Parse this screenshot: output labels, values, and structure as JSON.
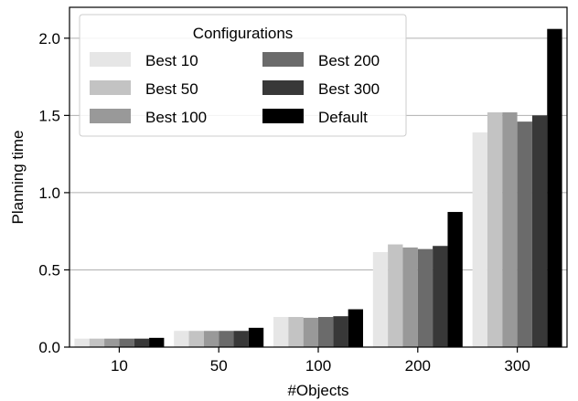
{
  "chart_data": {
    "type": "bar",
    "title": "",
    "xlabel": "#Objects",
    "ylabel": "Planning time",
    "ylim": [
      0,
      2.2
    ],
    "yticks": [
      "0.0",
      "0.5",
      "1.0",
      "1.5",
      "2.0"
    ],
    "ytick_values": [
      0,
      0.5,
      1.0,
      1.5,
      2.0
    ],
    "grid": "horizontal",
    "categories": [
      "10",
      "50",
      "100",
      "200",
      "300"
    ],
    "legend": {
      "title": "Configurations",
      "placement": "top-left",
      "columns": 2
    },
    "series": [
      {
        "name": "Best 10",
        "color": "#e6e6e6",
        "values": [
          0.055,
          0.105,
          0.195,
          0.615,
          1.39
        ]
      },
      {
        "name": "Best 50",
        "color": "#c3c3c3",
        "values": [
          0.055,
          0.105,
          0.195,
          0.665,
          1.52
        ]
      },
      {
        "name": "Best 100",
        "color": "#999999",
        "values": [
          0.055,
          0.105,
          0.19,
          0.645,
          1.52
        ]
      },
      {
        "name": "Best 200",
        "color": "#6b6b6b",
        "values": [
          0.055,
          0.105,
          0.195,
          0.635,
          1.46
        ]
      },
      {
        "name": "Best 300",
        "color": "#383838",
        "values": [
          0.055,
          0.105,
          0.2,
          0.655,
          1.5
        ]
      },
      {
        "name": "Default",
        "color": "#000000",
        "values": [
          0.06,
          0.125,
          0.245,
          0.875,
          2.06
        ]
      }
    ]
  }
}
